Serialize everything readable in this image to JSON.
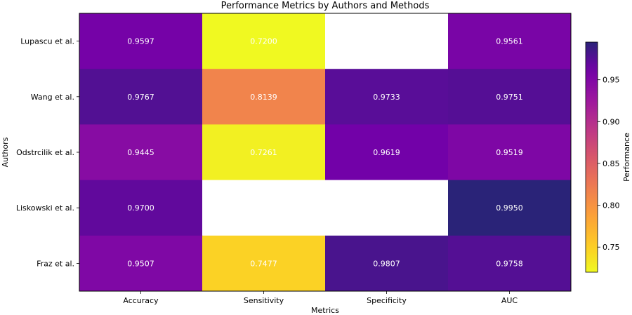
{
  "chart_data": {
    "type": "heatmap",
    "title": "Performance Metrics by Authors and Methods",
    "xlabel": "Metrics",
    "ylabel": "Authors",
    "columns": [
      "Accuracy",
      "Sensitivity",
      "Specificity",
      "AUC"
    ],
    "rows": [
      "Lupascu et al.",
      "Wang et al.",
      "Odstrcilik et al.",
      "Liskowski et al.",
      "Fraz et al."
    ],
    "values": [
      [
        0.9597,
        0.72,
        null,
        0.9561
      ],
      [
        0.9767,
        0.8139,
        0.9733,
        0.9751
      ],
      [
        0.9445,
        0.7261,
        0.9619,
        0.9519
      ],
      [
        0.97,
        null,
        null,
        0.995
      ],
      [
        0.9507,
        0.7477,
        0.9807,
        0.9758
      ]
    ],
    "cell_labels": [
      [
        "0.9597",
        "0.7200",
        "",
        "0.9561"
      ],
      [
        "0.9767",
        "0.8139",
        "0.9733",
        "0.9751"
      ],
      [
        "0.9445",
        "0.7261",
        "0.9619",
        "0.9519"
      ],
      [
        "0.9700",
        "",
        "",
        "0.9950"
      ],
      [
        "0.9507",
        "0.7477",
        "0.9807",
        "0.9758"
      ]
    ],
    "colorbar": {
      "label": "Performance",
      "colormap": "plasma_r",
      "range": [
        0.72,
        0.995
      ],
      "ticks": [
        0.75,
        0.8,
        0.85,
        0.9,
        0.95
      ],
      "tick_labels": [
        "0.75",
        "0.80",
        "0.85",
        "0.90",
        "0.95"
      ]
    },
    "missing_color": "#ffffff",
    "cell_text_color": "#ffffff"
  }
}
